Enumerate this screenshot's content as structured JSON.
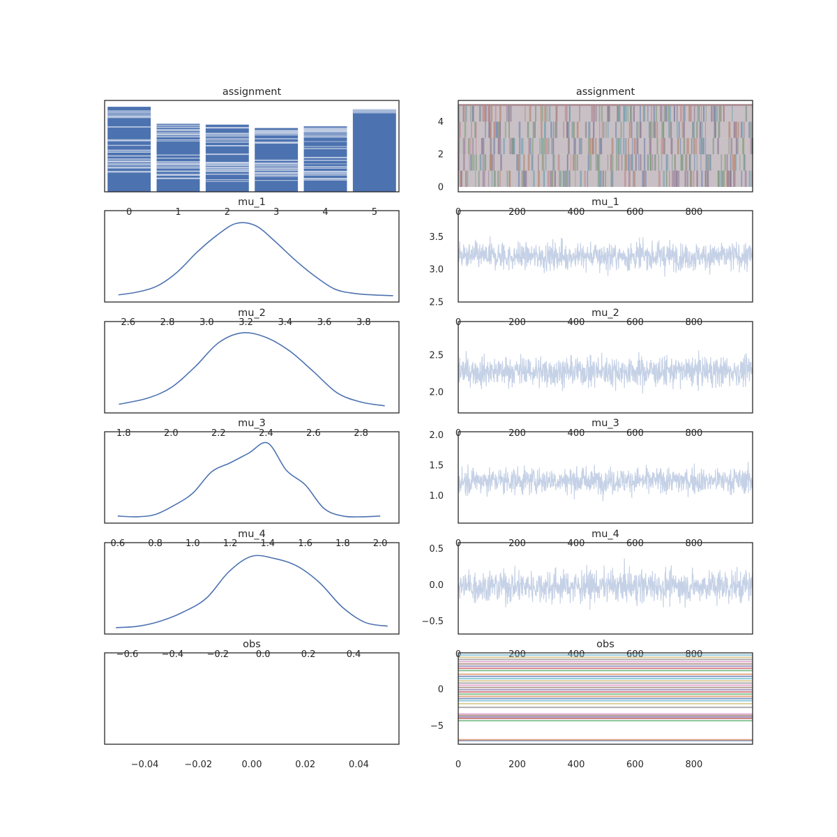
{
  "chart_data": [
    {
      "id": "assignment-hist",
      "type": "bar",
      "title": "assignment",
      "categories": [
        "0",
        "1",
        "2",
        "3",
        "4",
        "5"
      ],
      "values": [
        1.0,
        0.8,
        0.79,
        0.75,
        0.77,
        0.97
      ],
      "xticks": [
        "0",
        "1",
        "2",
        "3",
        "4",
        "5"
      ],
      "yticks": [],
      "grid": false,
      "colors": {
        "bar": "#4c72b0",
        "stripe": "#c5d1e6"
      }
    },
    {
      "id": "assignment-trace",
      "type": "line",
      "title": "assignment",
      "x_range": [
        0,
        999
      ],
      "ylim": [
        -0.3,
        5.3
      ],
      "levels": [
        0,
        1,
        2,
        3,
        4,
        5
      ],
      "xticks": [
        "0",
        "200",
        "400",
        "600",
        "800"
      ],
      "yticks": [
        "0",
        "2",
        "4"
      ],
      "grid": false
    },
    {
      "id": "mu_1-kde",
      "type": "line",
      "title": "mu_1",
      "x": [
        2.55,
        2.65,
        2.75,
        2.85,
        2.95,
        3.05,
        3.15,
        3.25,
        3.35,
        3.45,
        3.55,
        3.65,
        3.75,
        3.85,
        3.95
      ],
      "y": [
        0.02,
        0.06,
        0.14,
        0.32,
        0.58,
        0.8,
        0.96,
        0.93,
        0.72,
        0.48,
        0.27,
        0.1,
        0.04,
        0.02,
        0.01
      ],
      "xlim": [
        2.48,
        3.98
      ],
      "xticks": [
        "2.6",
        "2.8",
        "3.0",
        "3.2",
        "3.4",
        "3.6",
        "3.8"
      ],
      "yticks": [],
      "grid": false,
      "colors": {
        "line": "#4c72b0"
      }
    },
    {
      "id": "mu_1-trace",
      "type": "line",
      "title": "mu_1",
      "x_range": [
        0,
        999
      ],
      "center": 3.2,
      "spread": 0.18,
      "ylim": [
        2.5,
        3.9
      ],
      "xticks": [
        "0",
        "200",
        "400",
        "600",
        "800"
      ],
      "yticks": [
        "2.5",
        "3.0",
        "3.5"
      ],
      "grid": false,
      "colors": {
        "line": "#c5d1e6"
      }
    },
    {
      "id": "mu_2-kde",
      "type": "line",
      "title": "mu_2",
      "x": [
        1.78,
        1.9,
        2.0,
        2.1,
        2.2,
        2.3,
        2.4,
        2.5,
        2.6,
        2.7,
        2.8,
        2.9
      ],
      "y": [
        0.04,
        0.12,
        0.26,
        0.53,
        0.85,
        0.98,
        0.92,
        0.74,
        0.47,
        0.19,
        0.07,
        0.02
      ],
      "xlim": [
        1.72,
        2.96
      ],
      "xticks": [
        "1.8",
        "2.0",
        "2.2",
        "2.4",
        "2.6",
        "2.8"
      ],
      "yticks": [],
      "grid": false,
      "colors": {
        "line": "#4c72b0"
      }
    },
    {
      "id": "mu_2-trace",
      "type": "line",
      "title": "mu_2",
      "x_range": [
        0,
        999
      ],
      "center": 2.28,
      "spread": 0.17,
      "ylim": [
        1.72,
        2.95
      ],
      "xticks": [
        "0",
        "200",
        "400",
        "600",
        "800"
      ],
      "yticks": [
        "2.0",
        "2.5"
      ],
      "grid": false,
      "colors": {
        "line": "#c5d1e6"
      }
    },
    {
      "id": "mu_3-kde",
      "type": "line",
      "title": "mu_3",
      "x": [
        0.6,
        0.7,
        0.8,
        0.9,
        1.0,
        1.1,
        1.2,
        1.3,
        1.4,
        1.5,
        1.6,
        1.7,
        1.8,
        1.9,
        2.0
      ],
      "y": [
        0.02,
        0.01,
        0.04,
        0.16,
        0.32,
        0.6,
        0.72,
        0.85,
        0.98,
        0.62,
        0.43,
        0.12,
        0.02,
        0.01,
        0.02
      ],
      "xlim": [
        0.53,
        2.1
      ],
      "xticks": [
        "0.6",
        "0.8",
        "1.0",
        "1.2",
        "1.4",
        "1.6",
        "1.8",
        "2.0"
      ],
      "yticks": [],
      "grid": false,
      "colors": {
        "line": "#4c72b0"
      }
    },
    {
      "id": "mu_3-trace",
      "type": "line",
      "title": "mu_3",
      "x_range": [
        0,
        999
      ],
      "center": 1.25,
      "spread": 0.18,
      "ylim": [
        0.55,
        2.05
      ],
      "xticks": [
        "0",
        "200",
        "400",
        "600",
        "800"
      ],
      "yticks": [
        "1.0",
        "1.5",
        "2.0"
      ],
      "grid": false,
      "colors": {
        "line": "#c5d1e6"
      }
    },
    {
      "id": "mu_4-kde",
      "type": "line",
      "title": "mu_4",
      "x": [
        -0.65,
        -0.55,
        -0.45,
        -0.35,
        -0.25,
        -0.15,
        -0.05,
        0.05,
        0.15,
        0.25,
        0.35,
        0.45,
        0.55
      ],
      "y": [
        0.01,
        0.03,
        0.1,
        0.22,
        0.4,
        0.75,
        0.95,
        0.92,
        0.82,
        0.6,
        0.28,
        0.08,
        0.03
      ],
      "xlim": [
        -0.7,
        0.6
      ],
      "xticks": [
        "−0.6",
        "−0.4",
        "−0.2",
        "0.0",
        "0.2",
        "0.4"
      ],
      "yticks": [],
      "grid": false,
      "colors": {
        "line": "#4c72b0"
      }
    },
    {
      "id": "mu_4-trace",
      "type": "line",
      "title": "mu_4",
      "x_range": [
        0,
        999
      ],
      "center": -0.02,
      "spread": 0.19,
      "ylim": [
        -0.68,
        0.58
      ],
      "xticks": [
        "0",
        "200",
        "400",
        "600",
        "800"
      ],
      "yticks": [
        "−0.5",
        "0.0",
        "0.5"
      ],
      "grid": false,
      "colors": {
        "line": "#c5d1e6"
      }
    },
    {
      "id": "obs-kde",
      "type": "line",
      "title": "obs",
      "x": [],
      "y": [],
      "xlim": [
        -0.055,
        0.055
      ],
      "xticks": [
        "−0.04",
        "−0.02",
        "0.00",
        "0.02",
        "0.04"
      ],
      "yticks": [],
      "grid": false
    },
    {
      "id": "obs-trace",
      "type": "line",
      "title": "obs",
      "x_range": [
        0,
        999
      ],
      "values": [
        -7.0,
        -6.9,
        -4.3,
        -4.0,
        -3.8,
        -3.6,
        -3.4,
        -2.5,
        -2.0,
        -1.6,
        -1.3,
        -1.0,
        -0.7,
        -0.4,
        -0.1,
        0.2,
        0.5,
        0.8,
        1.1,
        1.4,
        1.7,
        2.0,
        2.5,
        2.8,
        3.1,
        3.4,
        3.7,
        4.0,
        4.3,
        4.6
      ],
      "ylim": [
        -7.5,
        4.9
      ],
      "xticks": [
        "0",
        "200",
        "400",
        "600",
        "800"
      ],
      "yticks": [
        "−5",
        "0"
      ],
      "grid": false,
      "colors": {
        "palette": [
          "#4c72b0",
          "#dd8452",
          "#55a868",
          "#c44e52",
          "#8172b3",
          "#937860",
          "#da8bc3",
          "#8c8c8c",
          "#ccb974",
          "#64b5cd"
        ]
      }
    }
  ]
}
